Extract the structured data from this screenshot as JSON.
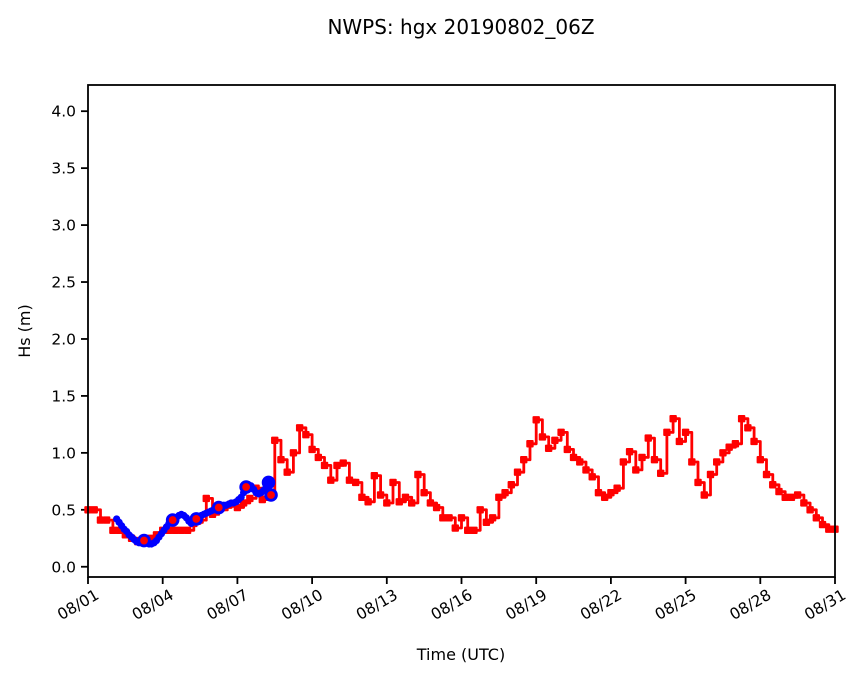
{
  "title": "NWPS: hgx 20190802_06Z",
  "colors": {
    "model_line": "#ff0000",
    "obs_dots": "#0000ff",
    "axis": "#000000",
    "background": "#ffffff"
  },
  "chart_data": {
    "type": "line",
    "title": "NWPS: hgx 20190802_06Z",
    "xlabel": "Time (UTC)",
    "ylabel": "Hs (m)",
    "grid": false,
    "legend": "none",
    "xlim_days_after_0801": [
      0,
      30
    ],
    "ylim": [
      -0.09,
      4.23
    ],
    "y_ticks": [
      0.0,
      0.5,
      1.0,
      1.5,
      2.0,
      2.5,
      3.0,
      3.5,
      4.0
    ],
    "y_tick_labels": [
      "0.0",
      "0.5",
      "1.0",
      "1.5",
      "2.0",
      "2.5",
      "3.0",
      "3.5",
      "4.0"
    ],
    "x_tick_days": [
      0,
      3,
      6,
      9,
      12,
      15,
      18,
      21,
      24,
      27,
      30
    ],
    "x_tick_labels": [
      "08/01",
      "08/04",
      "08/07",
      "08/10",
      "08/13",
      "08/16",
      "08/19",
      "08/22",
      "08/25",
      "08/28",
      "08/31"
    ],
    "x_tick_rotation_deg": 30,
    "series": [
      {
        "name": "model-forecast-hs",
        "color": "#ff0000",
        "line_style": "steps-post",
        "marker": "square",
        "t0_day": 0,
        "dt_days": 0.25,
        "values": [
          0.5,
          0.5,
          0.41,
          0.41,
          0.32,
          0.32,
          0.28,
          0.25,
          0.22,
          0.24,
          0.25,
          0.28,
          0.32,
          0.32,
          0.32,
          0.32,
          0.32,
          0.38,
          0.41,
          0.6,
          0.46,
          0.5,
          0.52,
          0.55,
          0.52,
          0.56,
          0.6,
          0.69,
          0.59,
          0.65,
          1.11,
          0.94,
          0.83,
          1.0,
          1.22,
          1.16,
          1.03,
          0.96,
          0.89,
          0.76,
          0.89,
          0.91,
          0.76,
          0.74,
          0.61,
          0.57,
          0.8,
          0.63,
          0.56,
          0.74,
          0.57,
          0.61,
          0.56,
          0.81,
          0.65,
          0.56,
          0.52,
          0.43,
          0.43,
          0.34,
          0.43,
          0.32,
          0.32,
          0.5,
          0.39,
          0.43,
          0.61,
          0.65,
          0.72,
          0.83,
          0.94,
          1.08,
          1.29,
          1.14,
          1.04,
          1.11,
          1.18,
          1.03,
          0.96,
          0.92,
          0.85,
          0.79,
          0.65,
          0.61,
          0.65,
          0.69,
          0.92,
          1.01,
          0.85,
          0.96,
          1.13,
          0.94,
          0.82,
          1.18,
          1.3,
          1.1,
          1.18,
          0.92,
          0.74,
          0.63,
          0.81,
          0.92,
          1.0,
          1.05,
          1.08,
          1.3,
          1.22,
          1.1,
          0.94,
          0.81,
          0.72,
          0.66,
          0.61,
          0.61,
          0.63,
          0.56,
          0.5,
          0.43,
          0.37,
          0.33,
          0.33
        ]
      },
      {
        "name": "observations-hs",
        "color": "#0000ff",
        "marker": "dot",
        "points": [
          [
            1.15,
            0.42
          ],
          [
            1.25,
            0.39
          ],
          [
            1.35,
            0.36
          ],
          [
            1.45,
            0.33
          ],
          [
            1.55,
            0.31
          ],
          [
            1.65,
            0.28
          ],
          [
            1.75,
            0.26
          ],
          [
            1.85,
            0.24
          ],
          [
            1.95,
            0.22
          ],
          [
            2.05,
            0.21
          ],
          [
            2.15,
            0.22
          ],
          [
            2.25,
            0.23
          ],
          [
            2.35,
            0.21
          ],
          [
            2.45,
            0.2
          ],
          [
            2.55,
            0.2
          ],
          [
            2.65,
            0.21
          ],
          [
            2.75,
            0.23
          ],
          [
            2.85,
            0.26
          ],
          [
            2.95,
            0.29
          ],
          [
            3.05,
            0.32
          ],
          [
            3.15,
            0.35
          ],
          [
            3.25,
            0.38
          ],
          [
            3.35,
            0.4
          ],
          [
            3.45,
            0.42
          ],
          [
            3.55,
            0.43
          ],
          [
            3.65,
            0.45
          ],
          [
            3.75,
            0.46
          ],
          [
            3.85,
            0.45
          ],
          [
            3.95,
            0.43
          ],
          [
            4.05,
            0.4
          ],
          [
            4.15,
            0.38
          ],
          [
            4.25,
            0.4
          ],
          [
            4.35,
            0.42
          ],
          [
            4.45,
            0.44
          ],
          [
            4.55,
            0.45
          ],
          [
            4.65,
            0.46
          ],
          [
            4.75,
            0.47
          ],
          [
            4.85,
            0.48
          ],
          [
            4.95,
            0.49
          ],
          [
            5.05,
            0.5
          ],
          [
            5.15,
            0.51
          ],
          [
            5.25,
            0.52
          ],
          [
            5.35,
            0.53
          ],
          [
            5.45,
            0.54
          ],
          [
            5.55,
            0.54
          ],
          [
            5.65,
            0.55
          ],
          [
            5.75,
            0.56
          ],
          [
            5.85,
            0.56
          ],
          [
            5.95,
            0.57
          ],
          [
            6.05,
            0.59
          ],
          [
            6.15,
            0.61
          ],
          [
            6.25,
            0.65
          ],
          [
            6.35,
            0.7
          ],
          [
            6.45,
            0.72
          ],
          [
            6.55,
            0.71
          ],
          [
            6.65,
            0.68
          ],
          [
            6.75,
            0.65
          ],
          [
            6.85,
            0.64
          ],
          [
            6.95,
            0.65
          ],
          [
            7.05,
            0.67
          ],
          [
            7.15,
            0.7
          ],
          [
            7.25,
            0.74
          ],
          [
            7.35,
            0.63
          ]
        ]
      },
      {
        "name": "observations-synoptic-circles",
        "ring_color": "#0000ff",
        "center_color": "#ff0000",
        "points": [
          {
            "day": 2.25,
            "value": 0.23,
            "red_center": true
          },
          {
            "day": 3.4,
            "value": 0.41,
            "red_center": true
          },
          {
            "day": 4.35,
            "value": 0.42,
            "red_center": true
          },
          {
            "day": 5.25,
            "value": 0.52,
            "red_center": true
          },
          {
            "day": 6.35,
            "value": 0.7,
            "red_center": true
          },
          {
            "day": 7.25,
            "value": 0.74,
            "red_center": false
          },
          {
            "day": 7.35,
            "value": 0.63,
            "red_center": true
          }
        ]
      }
    ]
  }
}
